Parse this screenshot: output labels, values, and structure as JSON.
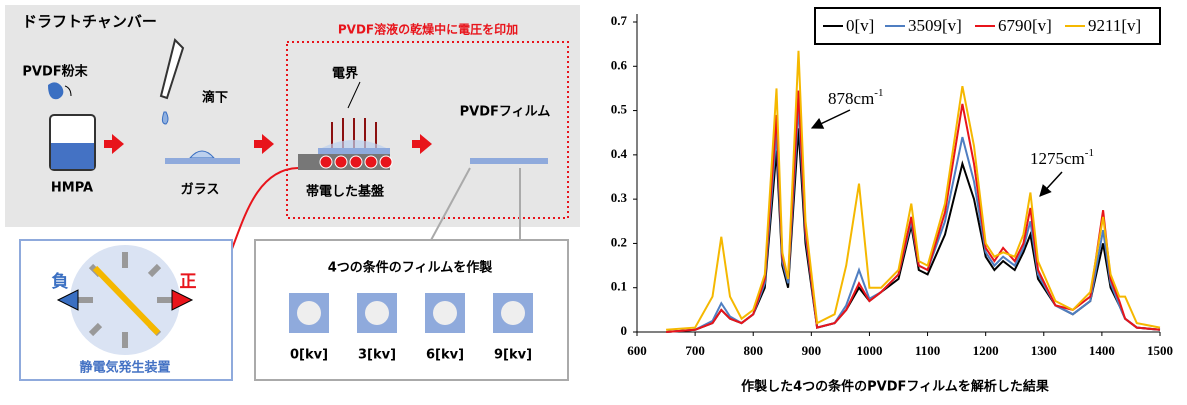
{
  "diagram": {
    "chamber": "ドラフトチャンバー",
    "note": "PVDF溶液の乾燥中に電圧を印加",
    "powder": "PVDF粉末",
    "solvent": "HMPA",
    "drop": "滴下",
    "glass": "ガラス",
    "field": "電界",
    "substrate": "帯電した基盤",
    "film": "PVDFフィルム",
    "generator": {
      "negative": "負",
      "positive": "正",
      "name": "静電気発生装置"
    },
    "conditions": {
      "title": "4つの条件のフィルムを作製",
      "items": [
        "0[kv]",
        "3[kv]",
        "6[kv]",
        "9[kv]"
      ]
    }
  },
  "chart_data": {
    "type": "line",
    "caption": "作製した4つの条件のPVDFフィルムを解析した結果",
    "x": [
      650,
      700,
      730,
      745,
      760,
      780,
      800,
      820,
      840,
      850,
      860,
      878,
      890,
      910,
      940,
      960,
      982,
      1000,
      1020,
      1050,
      1072,
      1085,
      1100,
      1130,
      1160,
      1180,
      1200,
      1215,
      1230,
      1250,
      1265,
      1277,
      1290,
      1320,
      1350,
      1380,
      1402,
      1415,
      1430,
      1440,
      1460,
      1500
    ],
    "series": [
      {
        "name": "0[v]",
        "color": "#000000",
        "values": [
          0,
          0.005,
          0.02,
          0.05,
          0.03,
          0.02,
          0.04,
          0.1,
          0.41,
          0.15,
          0.1,
          0.46,
          0.2,
          0.01,
          0.02,
          0.05,
          0.1,
          0.07,
          0.09,
          0.12,
          0.24,
          0.14,
          0.13,
          0.22,
          0.38,
          0.3,
          0.17,
          0.14,
          0.16,
          0.14,
          0.18,
          0.22,
          0.12,
          0.06,
          0.04,
          0.07,
          0.2,
          0.1,
          0.06,
          0.03,
          0.01,
          0.005
        ]
      },
      {
        "name": "3509[v]",
        "color": "#4f7ec1",
        "values": [
          0,
          0.005,
          0.025,
          0.065,
          0.035,
          0.02,
          0.04,
          0.11,
          0.45,
          0.16,
          0.11,
          0.51,
          0.22,
          0.01,
          0.02,
          0.06,
          0.14,
          0.075,
          0.09,
          0.13,
          0.25,
          0.15,
          0.14,
          0.25,
          0.44,
          0.34,
          0.18,
          0.15,
          0.17,
          0.15,
          0.19,
          0.25,
          0.13,
          0.06,
          0.04,
          0.07,
          0.23,
          0.11,
          0.06,
          0.03,
          0.01,
          0.005
        ]
      },
      {
        "name": "6790[v]",
        "color": "#e8141b",
        "values": [
          0,
          0.005,
          0.02,
          0.05,
          0.03,
          0.02,
          0.04,
          0.12,
          0.49,
          0.17,
          0.12,
          0.545,
          0.23,
          0.01,
          0.02,
          0.05,
          0.11,
          0.07,
          0.09,
          0.13,
          0.26,
          0.15,
          0.14,
          0.27,
          0.515,
          0.38,
          0.19,
          0.16,
          0.19,
          0.16,
          0.2,
          0.28,
          0.14,
          0.06,
          0.05,
          0.08,
          0.275,
          0.12,
          0.07,
          0.03,
          0.01,
          0.005
        ]
      },
      {
        "name": "9211[v]",
        "color": "#f5b800",
        "values": [
          0.005,
          0.01,
          0.08,
          0.215,
          0.08,
          0.03,
          0.05,
          0.13,
          0.55,
          0.18,
          0.12,
          0.635,
          0.25,
          0.02,
          0.04,
          0.15,
          0.335,
          0.1,
          0.1,
          0.14,
          0.29,
          0.16,
          0.15,
          0.29,
          0.555,
          0.42,
          0.2,
          0.17,
          0.18,
          0.17,
          0.22,
          0.315,
          0.16,
          0.07,
          0.05,
          0.09,
          0.26,
          0.13,
          0.08,
          0.08,
          0.02,
          0.01
        ]
      }
    ],
    "xlim": [
      600,
      1500
    ],
    "xticks": [
      600,
      700,
      800,
      900,
      1000,
      1100,
      1200,
      1300,
      1400,
      1500
    ],
    "ylim": [
      0,
      0.7
    ],
    "yticks": [
      0,
      0.1,
      0.2,
      0.3,
      0.4,
      0.5,
      0.6,
      0.7
    ],
    "legend": "top-right",
    "annotations": [
      {
        "text": "878cm",
        "sup": "-1"
      },
      {
        "text": "1275cm",
        "sup": "-1"
      }
    ]
  }
}
